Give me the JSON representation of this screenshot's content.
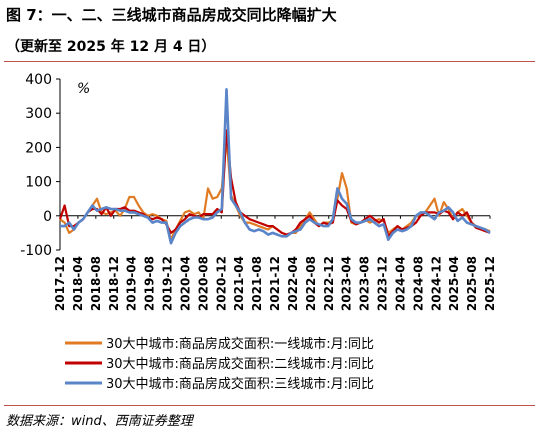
{
  "header": {
    "title": "图 7：一、二、三线城市商品房成交同比降幅扩大",
    "subtitle": "（更新至 2025 年 12 月 4 日）"
  },
  "footer": {
    "source": "数据来源：wind、西南证券整理"
  },
  "chart_data": {
    "type": "line",
    "unit_label": "%",
    "ylim": [
      -100,
      400
    ],
    "yticks": [
      -100,
      0,
      100,
      200,
      300,
      400
    ],
    "x_tick_labels": [
      "2017-12",
      "2018-04",
      "2018-08",
      "2018-12",
      "2019-04",
      "2019-08",
      "2019-12",
      "2020-04",
      "2020-08",
      "2020-12",
      "2021-04",
      "2021-08",
      "2021-12",
      "2022-04",
      "2022-08",
      "2022-12",
      "2023-04",
      "2023-08",
      "2023-12",
      "2024-04",
      "2024-08",
      "2024-12",
      "2025-04",
      "2025-08",
      "2025-12"
    ],
    "x_start": "2017-12",
    "x_end": "2025-12",
    "legend_position": "bottom",
    "series": [
      {
        "name": "30大中城市:商品房成交面积:一线城市:月:同比",
        "color": "#e07b24",
        "values": [
          -10,
          -20,
          -50,
          -40,
          -20,
          -10,
          10,
          30,
          50,
          10,
          5,
          10,
          15,
          0,
          20,
          55,
          55,
          30,
          10,
          0,
          5,
          0,
          -10,
          -15,
          -70,
          -40,
          -15,
          10,
          15,
          5,
          10,
          -10,
          80,
          50,
          55,
          80,
          230,
          60,
          30,
          0,
          -20,
          -20,
          -25,
          -30,
          -35,
          -40,
          -30,
          -40,
          -50,
          -55,
          -50,
          -50,
          -30,
          -10,
          10,
          -10,
          -30,
          -20,
          -20,
          -15,
          50,
          125,
          80,
          -20,
          -25,
          -20,
          -10,
          -20,
          -15,
          -10,
          -15,
          -50,
          -40,
          -30,
          -40,
          -30,
          -20,
          0,
          0,
          10,
          30,
          50,
          0,
          40,
          20,
          -10,
          10,
          20,
          0,
          -20,
          -30,
          -35,
          -40,
          -45
        ]
      },
      {
        "name": "30大中城市:商品房成交面积:二线城市:月:同比",
        "color": "#c00000",
        "values": [
          -10,
          30,
          -30,
          -30,
          -20,
          -10,
          10,
          20,
          20,
          5,
          25,
          0,
          20,
          20,
          25,
          15,
          15,
          10,
          5,
          -5,
          -10,
          -5,
          -10,
          -25,
          -50,
          -40,
          -20,
          -10,
          5,
          0,
          -5,
          5,
          5,
          5,
          20,
          10,
          250,
          110,
          40,
          10,
          0,
          -10,
          -15,
          -20,
          -25,
          -30,
          -30,
          -40,
          -50,
          -55,
          -50,
          -40,
          -20,
          -10,
          0,
          -20,
          -30,
          -20,
          -25,
          -20,
          45,
          30,
          20,
          -15,
          -25,
          -20,
          -10,
          0,
          -10,
          -20,
          -10,
          -60,
          -45,
          -30,
          -40,
          -35,
          -30,
          -20,
          0,
          10,
          10,
          10,
          5,
          15,
          10,
          -10,
          10,
          0,
          10,
          -20,
          -35,
          -40,
          -45,
          -50
        ]
      },
      {
        "name": "30大中城市:商品房成交面积:三线城市:月:同比",
        "color": "#5a85c8",
        "values": [
          -30,
          -30,
          -20,
          -40,
          -20,
          -10,
          10,
          30,
          15,
          20,
          25,
          20,
          20,
          15,
          15,
          10,
          10,
          5,
          0,
          -5,
          -20,
          -15,
          -20,
          -20,
          -80,
          -50,
          -30,
          -20,
          -10,
          -5,
          -5,
          -10,
          -10,
          -5,
          10,
          20,
          370,
          50,
          30,
          10,
          -20,
          -40,
          -45,
          -40,
          -45,
          -55,
          -50,
          -55,
          -60,
          -60,
          -50,
          -45,
          -40,
          -20,
          -10,
          -20,
          -25,
          -30,
          -30,
          -10,
          80,
          50,
          35,
          -10,
          -20,
          -20,
          -15,
          -10,
          -20,
          -30,
          -25,
          -70,
          -50,
          -40,
          -45,
          -40,
          -30,
          0,
          10,
          10,
          0,
          -10,
          10,
          15,
          25,
          10,
          -15,
          -5,
          -20,
          -25,
          -30,
          -35,
          -40,
          -50
        ]
      }
    ]
  }
}
